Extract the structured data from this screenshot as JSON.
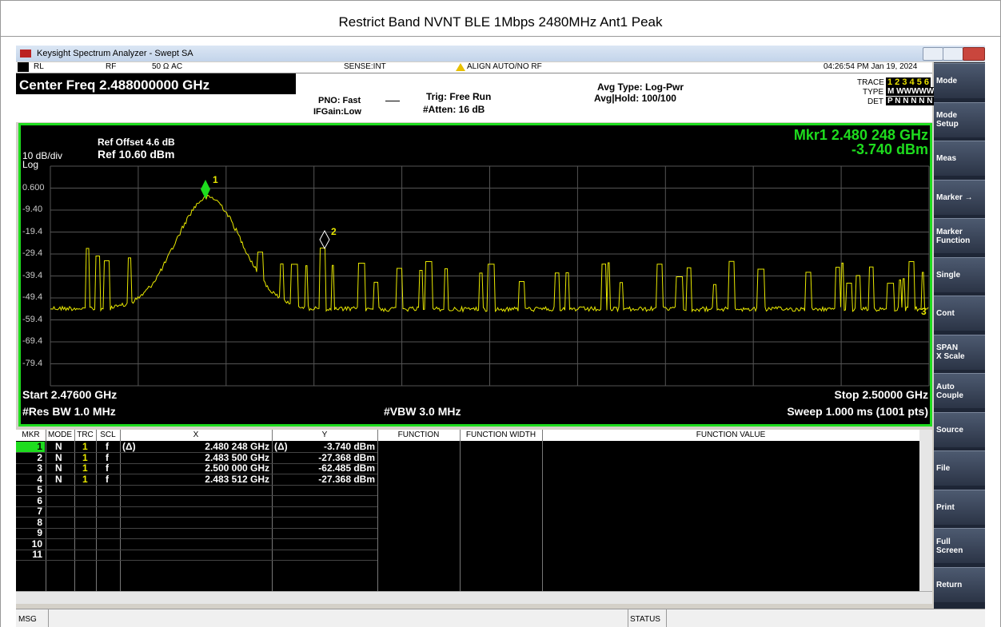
{
  "page_title": "Restrict Band NVNT BLE 1Mbps 2480MHz Ant1 Peak",
  "window_title": "Keysight Spectrum Analyzer - Swept SA",
  "status_bar": {
    "rl": "RL",
    "rf": "RF",
    "impedance": "50 Ω  AC",
    "sense": "SENSE:INT",
    "align": "ALIGN AUTO/NO RF",
    "timestamp": "04:26:54 PM Jan 19, 2024"
  },
  "header": {
    "center_freq": "Center Freq 2.488000000 GHz",
    "pno": "PNO: Fast",
    "ifgain": "IFGain:Low",
    "trig": "Trig: Free Run",
    "atten": "#Atten: 16 dB",
    "avg_type": "Avg Type: Log-Pwr",
    "avg_hold": "Avg|Hold: 100/100",
    "trace_label": "TRACE",
    "trace_nums": "1 2 3 4 5 6",
    "type_label": "TYPE",
    "type_value": "M WWWWW",
    "det_label": "DET",
    "det_value": "P N N N N N"
  },
  "plot": {
    "ref_offset": "Ref Offset 4.6 dB",
    "ref": "Ref 10.60 dBm",
    "scale": "10 dB/div",
    "scale_type": "Log",
    "y_labels": [
      "0.600",
      "-9.40",
      "-19.4",
      "-29.4",
      "-39.4",
      "-49.4",
      "-59.4",
      "-69.4",
      "-79.4"
    ],
    "marker_readout_freq": "Mkr1 2.480 248 GHz",
    "marker_readout_amp": "-3.740 dBm",
    "start": "Start 2.47600 GHz",
    "stop": "Stop 2.50000 GHz",
    "rbw": "#Res BW 1.0 MHz",
    "vbw": "#VBW 3.0 MHz",
    "sweep": "Sweep  1.000 ms (1001 pts)",
    "marker_labels": [
      "1",
      "2",
      "3"
    ]
  },
  "marker_table": {
    "columns": [
      "MKR",
      "MODE",
      "TRC",
      "SCL",
      "X",
      "Y",
      "FUNCTION",
      "FUNCTION WIDTH",
      "FUNCTION VALUE"
    ],
    "rows": [
      {
        "mkr": "1",
        "mode": "N",
        "trc": "1",
        "scl": "f",
        "x_prefix": "(Δ)",
        "x": "2.480 248 GHz",
        "y_prefix": "(Δ)",
        "y": "-3.740 dBm"
      },
      {
        "mkr": "2",
        "mode": "N",
        "trc": "1",
        "scl": "f",
        "x": "2.483 500 GHz",
        "y": "-27.368 dBm"
      },
      {
        "mkr": "3",
        "mode": "N",
        "trc": "1",
        "scl": "f",
        "x": "2.500 000 GHz",
        "y": "-62.485 dBm"
      },
      {
        "mkr": "4",
        "mode": "N",
        "trc": "1",
        "scl": "f",
        "x": "2.483 512 GHz",
        "y": "-27.368 dBm"
      },
      {
        "mkr": "5"
      },
      {
        "mkr": "6"
      },
      {
        "mkr": "7"
      },
      {
        "mkr": "8"
      },
      {
        "mkr": "9"
      },
      {
        "mkr": "10"
      },
      {
        "mkr": "11"
      }
    ]
  },
  "softkeys": [
    "Mode",
    "Mode\nSetup",
    "Meas",
    "Marker →",
    "Marker\nFunction",
    "Single",
    "Cont",
    "SPAN\nX Scale",
    "Auto\nCouple",
    "Source",
    "File",
    "Print",
    "Full\nScreen",
    "Return"
  ],
  "footer": {
    "msg": "MSG",
    "status": "STATUS"
  }
}
